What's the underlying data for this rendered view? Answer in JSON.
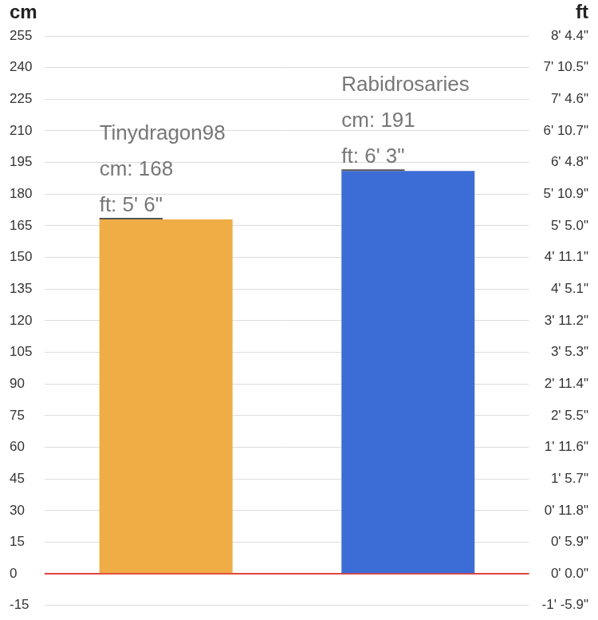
{
  "chart_data": {
    "type": "bar",
    "ylabel": "cm",
    "y2label": "ft",
    "categories": [
      "Tinydragon98",
      "Rabidrosaries"
    ],
    "values": [
      168,
      191
    ],
    "value_labels": [
      "cm: 168",
      "cm: 191"
    ],
    "value_labels_ft": [
      "ft: 5' 6\"",
      "ft: 6' 3\""
    ],
    "colors": [
      "#f0ac45",
      "#3c6cd6"
    ],
    "data_labels": true,
    "tick_labels": "y",
    "grid": true,
    "ylim": [
      -15,
      255
    ],
    "yticks": [
      -15,
      0,
      15,
      30,
      45,
      60,
      75,
      90,
      105,
      120,
      135,
      150,
      165,
      180,
      195,
      210,
      225,
      240,
      255
    ],
    "y2lim": [
      -15,
      255
    ],
    "y2ticks": [
      {
        "value": -15,
        "label": "-1' -5.9\""
      },
      {
        "value": 0,
        "label": "0' 0.0\""
      },
      {
        "value": 15,
        "label": "0' 5.9\""
      },
      {
        "value": 30,
        "label": "0' 11.8\""
      },
      {
        "value": 45,
        "label": "1' 5.7\""
      },
      {
        "value": 60,
        "label": "1' 11.6\""
      },
      {
        "value": 75,
        "label": "2' 5.5\""
      },
      {
        "value": 90,
        "label": "2' 11.4\""
      },
      {
        "value": 105,
        "label": "3' 5.3\""
      },
      {
        "value": 120,
        "label": "3' 11.2\""
      },
      {
        "value": 135,
        "label": "4' 5.1\""
      },
      {
        "value": 150,
        "label": "4' 11.1\""
      },
      {
        "value": 165,
        "label": "5' 5.0\""
      },
      {
        "value": 180,
        "label": "5' 10.9\""
      },
      {
        "value": 195,
        "label": "6' 4.8\""
      },
      {
        "value": 210,
        "label": "6' 10.7\""
      },
      {
        "value": 225,
        "label": "7' 4.6\""
      },
      {
        "value": 240,
        "label": "7' 10.5\""
      },
      {
        "value": 255,
        "label": "8' 4.4\""
      }
    ]
  }
}
